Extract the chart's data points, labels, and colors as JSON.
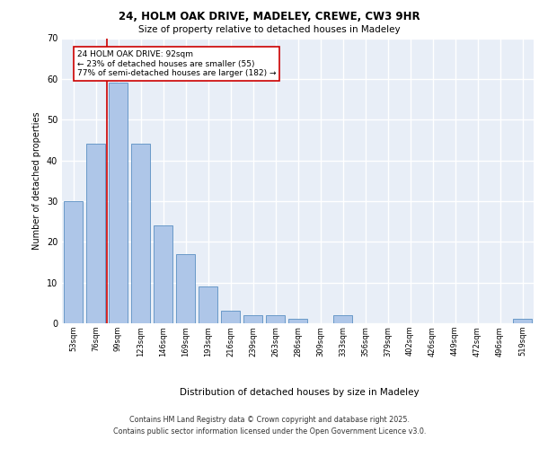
{
  "title1": "24, HOLM OAK DRIVE, MADELEY, CREWE, CW3 9HR",
  "title2": "Size of property relative to detached houses in Madeley",
  "xlabel": "Distribution of detached houses by size in Madeley",
  "ylabel": "Number of detached properties",
  "categories": [
    "53sqm",
    "76sqm",
    "99sqm",
    "123sqm",
    "146sqm",
    "169sqm",
    "193sqm",
    "216sqm",
    "239sqm",
    "263sqm",
    "286sqm",
    "309sqm",
    "333sqm",
    "356sqm",
    "379sqm",
    "402sqm",
    "426sqm",
    "449sqm",
    "472sqm",
    "496sqm",
    "519sqm"
  ],
  "values": [
    30,
    44,
    59,
    44,
    24,
    17,
    9,
    3,
    2,
    2,
    1,
    0,
    2,
    0,
    0,
    0,
    0,
    0,
    0,
    0,
    1
  ],
  "bar_color": "#aec6e8",
  "bar_edge_color": "#5a8fc2",
  "background_color": "#e8eef7",
  "grid_color": "#ffffff",
  "red_line_x": 1.5,
  "annotation_text": "24 HOLM OAK DRIVE: 92sqm\n← 23% of detached houses are smaller (55)\n77% of semi-detached houses are larger (182) →",
  "annotation_box_color": "#ffffff",
  "annotation_box_edge": "#cc0000",
  "ylim": [
    0,
    70
  ],
  "yticks": [
    0,
    10,
    20,
    30,
    40,
    50,
    60,
    70
  ],
  "footer1": "Contains HM Land Registry data © Crown copyright and database right 2025.",
  "footer2": "Contains public sector information licensed under the Open Government Licence v3.0."
}
